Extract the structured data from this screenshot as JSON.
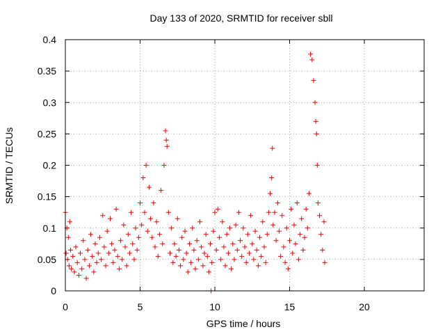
{
  "chart_data": {
    "type": "scatter",
    "title": "Day 133 of 2020, SRMTID for receiver sbll",
    "xlabel": "GPS time / hours",
    "ylabel": "SRMTID / TECUs",
    "xlim": [
      0,
      24
    ],
    "ylim": [
      0,
      0.4
    ],
    "xticks": [
      0,
      5,
      10,
      15,
      20
    ],
    "xtick_labels": [
      "0",
      "5",
      "10",
      "15",
      "20"
    ],
    "yticks": [
      0,
      0.05,
      0.1,
      0.15,
      0.2,
      0.25,
      0.3,
      0.35,
      0.4
    ],
    "ytick_labels": [
      "0",
      "0.05",
      "0.1",
      "0.15",
      "0.2",
      "0.25",
      "0.3",
      "0.35",
      "0.4"
    ],
    "grid": true,
    "marker": "+",
    "color": "#ee0000",
    "series": [
      {
        "name": "SRMTID",
        "x": [
          0.0,
          0.05,
          0.1,
          0.15,
          0.2,
          0.25,
          0.3,
          0.35,
          0.4,
          0.5,
          0.6,
          0.7,
          0.8,
          0.9,
          1.0,
          1.1,
          1.2,
          1.3,
          1.4,
          1.5,
          1.6,
          1.7,
          1.8,
          1.9,
          2.0,
          2.1,
          2.2,
          2.3,
          2.4,
          2.5,
          2.6,
          2.7,
          2.8,
          2.9,
          3.0,
          3.1,
          3.2,
          3.3,
          3.4,
          3.5,
          3.6,
          3.7,
          3.8,
          3.9,
          4.0,
          4.1,
          4.2,
          4.3,
          4.4,
          4.5,
          4.6,
          4.7,
          4.8,
          4.9,
          5.0,
          5.1,
          5.2,
          5.3,
          5.4,
          5.5,
          5.6,
          5.7,
          5.8,
          5.9,
          6.0,
          6.1,
          6.2,
          6.3,
          6.4,
          6.5,
          6.6,
          6.7,
          6.75,
          6.8,
          6.9,
          7.0,
          7.1,
          7.2,
          7.3,
          7.4,
          7.5,
          7.6,
          7.7,
          7.8,
          7.9,
          8.0,
          8.1,
          8.2,
          8.3,
          8.4,
          8.5,
          8.6,
          8.7,
          8.8,
          8.9,
          9.0,
          9.1,
          9.2,
          9.3,
          9.4,
          9.5,
          9.6,
          9.7,
          9.75,
          9.8,
          9.9,
          10.0,
          10.1,
          10.2,
          10.3,
          10.4,
          10.5,
          10.6,
          10.7,
          10.8,
          10.9,
          11.0,
          11.1,
          11.2,
          11.3,
          11.4,
          11.5,
          11.6,
          11.7,
          11.8,
          11.9,
          12.0,
          12.1,
          12.2,
          12.3,
          12.4,
          12.5,
          12.6,
          12.7,
          12.8,
          12.9,
          13.0,
          13.1,
          13.2,
          13.3,
          13.4,
          13.5,
          13.6,
          13.7,
          13.8,
          13.85,
          13.9,
          14.0,
          14.1,
          14.2,
          14.3,
          14.4,
          14.5,
          14.6,
          14.7,
          14.8,
          14.9,
          15.0,
          15.1,
          15.2,
          15.3,
          15.4,
          15.5,
          15.6,
          15.7,
          15.8,
          15.9,
          16.0,
          16.1,
          16.2,
          16.3,
          16.4,
          16.5,
          16.6,
          16.7,
          16.75,
          16.8,
          16.85,
          16.9,
          17.0,
          17.1,
          17.2,
          17.3,
          17.35
        ],
        "y": [
          0.125,
          0.06,
          0.1,
          0.05,
          0.085,
          0.04,
          0.11,
          0.065,
          0.035,
          0.055,
          0.03,
          0.07,
          0.045,
          0.025,
          0.06,
          0.035,
          0.08,
          0.05,
          0.02,
          0.065,
          0.04,
          0.09,
          0.055,
          0.03,
          0.075,
          0.045,
          0.06,
          0.085,
          0.05,
          0.12,
          0.07,
          0.04,
          0.095,
          0.06,
          0.115,
          0.075,
          0.045,
          0.065,
          0.13,
          0.055,
          0.035,
          0.08,
          0.05,
          0.105,
          0.07,
          0.04,
          0.09,
          0.06,
          0.125,
          0.075,
          0.05,
          0.1,
          0.065,
          0.085,
          0.14,
          0.105,
          0.18,
          0.125,
          0.2,
          0.095,
          0.165,
          0.115,
          0.085,
          0.14,
          0.07,
          0.11,
          0.055,
          0.09,
          0.16,
          0.075,
          0.2,
          0.255,
          0.24,
          0.23,
          0.125,
          0.06,
          0.1,
          0.045,
          0.075,
          0.055,
          0.115,
          0.065,
          0.04,
          0.085,
          0.05,
          0.095,
          0.06,
          0.03,
          0.075,
          0.045,
          0.1,
          0.065,
          0.035,
          0.08,
          0.05,
          0.11,
          0.07,
          0.04,
          0.06,
          0.09,
          0.055,
          0.03,
          0.075,
          0.0,
          0.045,
          0.095,
          0.125,
          0.065,
          0.13,
          0.085,
          0.05,
          0.11,
          0.07,
          0.04,
          0.09,
          0.06,
          0.1,
          0.035,
          0.075,
          0.05,
          0.105,
          0.065,
          0.125,
          0.08,
          0.055,
          0.1,
          0.07,
          0.045,
          0.09,
          0.06,
          0.12,
          0.075,
          0.05,
          0.095,
          0.065,
          0.04,
          0.085,
          0.055,
          0.11,
          0.07,
          0.045,
          0.09,
          0.125,
          0.155,
          0.18,
          0.227,
          0.105,
          0.125,
          0.08,
          0.14,
          0.095,
          0.055,
          0.12,
          0.07,
          0.045,
          0.1,
          0.035,
          0.08,
          0.13,
          0.06,
          0.105,
          0.075,
          0.14,
          0.05,
          0.09,
          0.115,
          0.065,
          0.085,
          0.13,
          0.1,
          0.155,
          0.377,
          0.368,
          0.335,
          0.3,
          0.27,
          0.25,
          0.2,
          0.14,
          0.12,
          0.09,
          0.065,
          0.11,
          0.045
        ]
      }
    ]
  }
}
